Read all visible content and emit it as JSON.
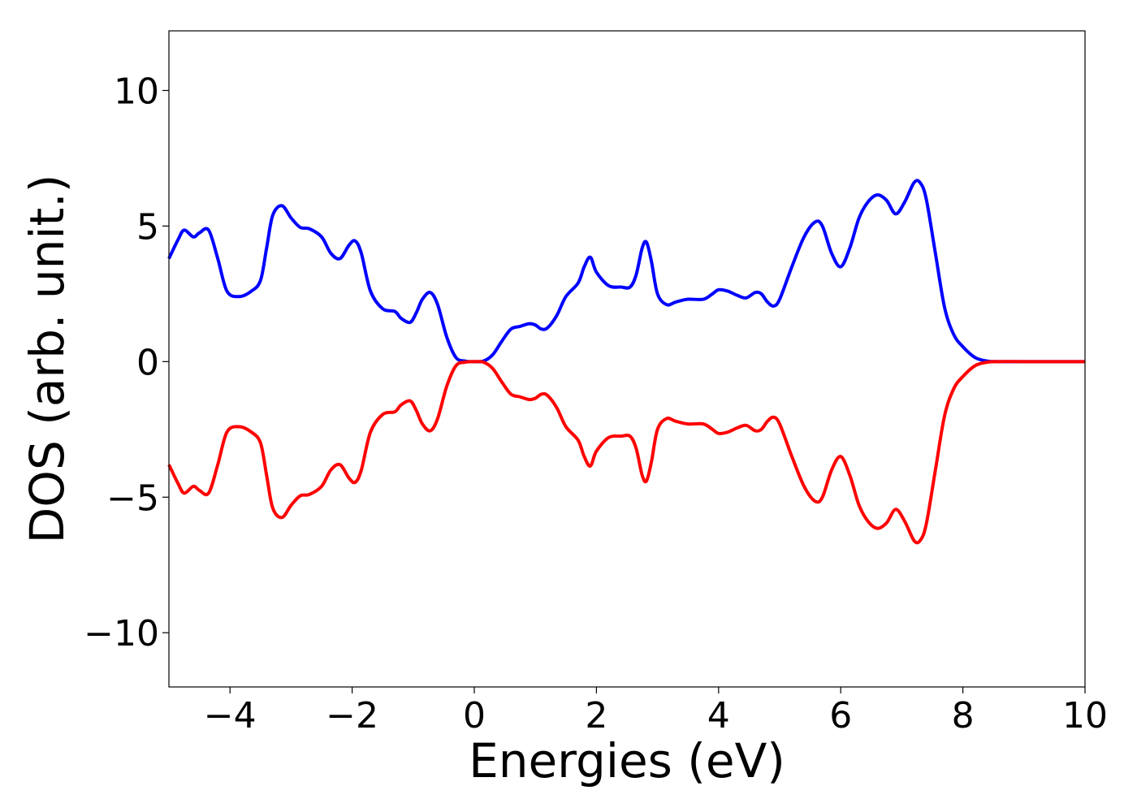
{
  "chart_data": {
    "type": "line",
    "title": "",
    "xlabel": "Energies (eV)",
    "ylabel": "DOS (arb. unit.)",
    "xlim": [
      -5,
      10
    ],
    "ylim": [
      -12,
      12.2
    ],
    "x_ticks": [
      -4,
      -2,
      0,
      2,
      4,
      6,
      8,
      10
    ],
    "x_tick_labels": [
      "−4",
      "−2",
      "0",
      "2",
      "4",
      "6",
      "8",
      "10"
    ],
    "y_ticks": [
      -10,
      -5,
      0,
      5,
      10
    ],
    "y_tick_labels": [
      "−10",
      "−5",
      "0",
      "5",
      "10"
    ],
    "grid": false,
    "series": [
      {
        "color": "#0000ff",
        "x": [
          -5.0,
          -4.85,
          -4.75,
          -4.6,
          -4.5,
          -4.35,
          -4.2,
          -4.05,
          -3.85,
          -3.65,
          -3.5,
          -3.4,
          -3.3,
          -3.15,
          -3.0,
          -2.85,
          -2.7,
          -2.5,
          -2.35,
          -2.2,
          -2.05,
          -1.95,
          -1.85,
          -1.7,
          -1.5,
          -1.3,
          -1.2,
          -1.05,
          -0.95,
          -0.85,
          -0.72,
          -0.6,
          -0.45,
          -0.3,
          -0.15,
          0.0,
          0.15,
          0.3,
          0.45,
          0.6,
          0.75,
          0.9,
          1.0,
          1.1,
          1.2,
          1.35,
          1.5,
          1.7,
          1.8,
          1.9,
          2.0,
          2.2,
          2.4,
          2.55,
          2.65,
          2.75,
          2.82,
          2.9,
          3.0,
          3.15,
          3.3,
          3.5,
          3.75,
          3.9,
          4.0,
          4.15,
          4.3,
          4.45,
          4.6,
          4.7,
          4.8,
          4.9,
          5.0,
          5.2,
          5.4,
          5.58,
          5.7,
          5.85,
          6.0,
          6.15,
          6.3,
          6.45,
          6.6,
          6.75,
          6.9,
          7.05,
          7.2,
          7.3,
          7.4,
          7.55,
          7.7,
          7.85,
          8.0,
          8.2,
          8.4,
          8.6,
          9.0,
          10.0
        ],
        "y": [
          3.8,
          4.5,
          4.85,
          4.6,
          4.75,
          4.85,
          3.8,
          2.6,
          2.4,
          2.6,
          3.0,
          4.2,
          5.4,
          5.75,
          5.3,
          4.95,
          4.9,
          4.6,
          4.0,
          3.8,
          4.3,
          4.45,
          4.0,
          2.6,
          1.95,
          1.85,
          1.6,
          1.45,
          1.8,
          2.3,
          2.55,
          2.1,
          0.9,
          0.15,
          0.02,
          0.0,
          0.02,
          0.25,
          0.75,
          1.2,
          1.3,
          1.4,
          1.35,
          1.2,
          1.25,
          1.7,
          2.4,
          2.9,
          3.5,
          3.85,
          3.3,
          2.8,
          2.75,
          2.75,
          3.2,
          4.2,
          4.4,
          3.7,
          2.5,
          2.1,
          2.2,
          2.3,
          2.3,
          2.5,
          2.65,
          2.6,
          2.45,
          2.35,
          2.55,
          2.5,
          2.2,
          2.05,
          2.3,
          3.5,
          4.6,
          5.15,
          5.0,
          4.0,
          3.5,
          4.2,
          5.3,
          5.9,
          6.15,
          5.95,
          5.45,
          5.9,
          6.6,
          6.6,
          6.0,
          4.0,
          2.0,
          1.0,
          0.55,
          0.15,
          0.02,
          0.0,
          0.0,
          0.0
        ]
      },
      {
        "color": "#ff0000",
        "x": [
          -5.0,
          -4.85,
          -4.75,
          -4.6,
          -4.5,
          -4.35,
          -4.2,
          -4.05,
          -3.85,
          -3.65,
          -3.5,
          -3.4,
          -3.3,
          -3.15,
          -3.0,
          -2.85,
          -2.7,
          -2.5,
          -2.35,
          -2.2,
          -2.05,
          -1.95,
          -1.85,
          -1.7,
          -1.5,
          -1.3,
          -1.2,
          -1.05,
          -0.95,
          -0.85,
          -0.72,
          -0.6,
          -0.45,
          -0.3,
          -0.15,
          0.0,
          0.15,
          0.3,
          0.45,
          0.6,
          0.75,
          0.9,
          1.0,
          1.1,
          1.2,
          1.35,
          1.5,
          1.7,
          1.8,
          1.9,
          2.0,
          2.2,
          2.4,
          2.55,
          2.65,
          2.75,
          2.82,
          2.9,
          3.0,
          3.15,
          3.3,
          3.5,
          3.75,
          3.9,
          4.0,
          4.15,
          4.3,
          4.45,
          4.6,
          4.7,
          4.8,
          4.9,
          5.0,
          5.2,
          5.4,
          5.58,
          5.7,
          5.85,
          6.0,
          6.15,
          6.3,
          6.45,
          6.6,
          6.75,
          6.9,
          7.05,
          7.2,
          7.3,
          7.4,
          7.55,
          7.7,
          7.85,
          8.0,
          8.2,
          8.4,
          8.6,
          9.0,
          10.0
        ],
        "y": [
          -3.8,
          -4.5,
          -4.85,
          -4.6,
          -4.75,
          -4.85,
          -3.8,
          -2.6,
          -2.4,
          -2.6,
          -3.0,
          -4.2,
          -5.4,
          -5.75,
          -5.3,
          -4.95,
          -4.9,
          -4.6,
          -4.0,
          -3.8,
          -4.3,
          -4.45,
          -4.0,
          -2.6,
          -1.95,
          -1.85,
          -1.6,
          -1.45,
          -1.8,
          -2.3,
          -2.55,
          -2.1,
          -0.9,
          -0.15,
          -0.02,
          0.0,
          -0.02,
          -0.25,
          -0.75,
          -1.2,
          -1.3,
          -1.4,
          -1.35,
          -1.2,
          -1.25,
          -1.7,
          -2.4,
          -2.9,
          -3.5,
          -3.85,
          -3.3,
          -2.8,
          -2.75,
          -2.75,
          -3.2,
          -4.2,
          -4.4,
          -3.7,
          -2.5,
          -2.1,
          -2.2,
          -2.3,
          -2.3,
          -2.5,
          -2.65,
          -2.6,
          -2.45,
          -2.35,
          -2.55,
          -2.5,
          -2.2,
          -2.05,
          -2.3,
          -3.5,
          -4.6,
          -5.15,
          -5.0,
          -4.0,
          -3.5,
          -4.2,
          -5.3,
          -5.9,
          -6.15,
          -5.95,
          -5.45,
          -5.9,
          -6.6,
          -6.6,
          -6.0,
          -4.0,
          -2.0,
          -1.0,
          -0.55,
          -0.15,
          -0.02,
          0.0,
          0.0,
          0.0
        ]
      }
    ]
  }
}
